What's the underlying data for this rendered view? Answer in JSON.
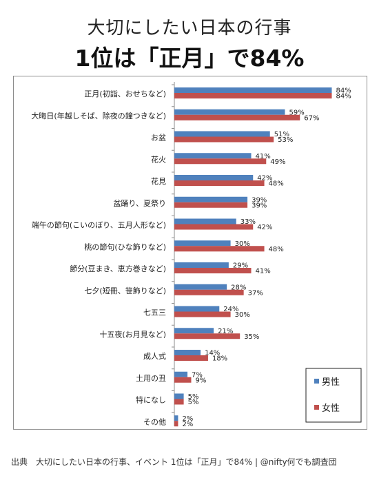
{
  "title_line1": "大切にしたい日本の行事",
  "title_line2": "1位は「正月」で84%",
  "source": "出典　大切にしたい日本の行事、イベント 1位は「正月」で84% | @nifty何でも調査団",
  "colors": {
    "male": "#4f81bd",
    "female": "#c0504d"
  },
  "chart_data": {
    "type": "bar",
    "orientation": "horizontal",
    "value_format": "percent",
    "xlim": [
      0,
      100
    ],
    "grid": false,
    "legend_position": "bottom-right",
    "categories": [
      "正月(初詣、おせちなど)",
      "大晦日(年越しそば、除夜の鐘つきなど)",
      "お盆",
      "花火",
      "花見",
      "盆踊り、夏祭り",
      "端午の節句(こいのぼり、五月人形など)",
      "桃の節句(ひな飾りなど)",
      "節分(豆まき、恵方巻きなど)",
      "七夕(短冊、笹飾りなど)",
      "七五三",
      "十五夜(お月見など)",
      "成人式",
      "土用の丑",
      "特になし",
      "その他"
    ],
    "series": [
      {
        "name": "男性",
        "values": [
          84,
          59,
          51,
          41,
          42,
          39,
          33,
          30,
          29,
          28,
          24,
          21,
          14,
          7,
          5,
          2
        ]
      },
      {
        "name": "女性",
        "values": [
          84,
          67,
          53,
          49,
          48,
          39,
          42,
          48,
          41,
          37,
          30,
          35,
          18,
          9,
          5,
          2
        ]
      }
    ]
  }
}
